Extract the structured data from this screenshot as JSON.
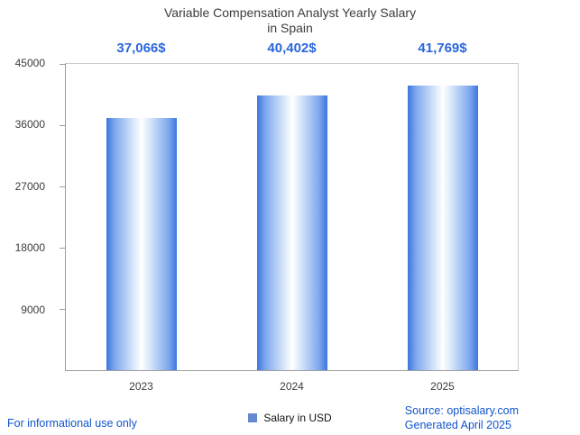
{
  "title": {
    "line1": "Variable Compensation Analyst Yearly Salary",
    "line2": "in Spain"
  },
  "legend": {
    "label": "Salary in USD"
  },
  "footer": {
    "left": "For informational use only",
    "source": "Source: optisalary.com",
    "generated": "Generated April 2025"
  },
  "theme": {
    "accent_blue": "#2a66dd",
    "link_blue": "#1155cc",
    "bar_edge": "#3b76dd",
    "bar_mid": "#ffffff",
    "legend_swatch": "#6688cc",
    "axis_gray": "#9e9e9e",
    "grid_gray": "#cccccc",
    "text_dark": "#3c3c3c"
  },
  "chart_data": {
    "type": "bar",
    "title": "Variable Compensation Analyst Yearly Salary in Spain",
    "xlabel": "",
    "ylabel": "",
    "categories": [
      "2023",
      "2024",
      "2025"
    ],
    "series": [
      {
        "name": "Salary in USD",
        "values": [
          37066,
          40402,
          41769
        ]
      }
    ],
    "values": [
      37066,
      40402,
      41769
    ],
    "value_labels": [
      "37,066$",
      "40,402$",
      "41,769$"
    ],
    "ylim": [
      0,
      45000
    ],
    "y_ticks": [
      9000,
      18000,
      27000,
      36000,
      45000
    ],
    "y_tick_labels": [
      "9000",
      "18000",
      "27000",
      "36000",
      "45000"
    ],
    "grid": false,
    "legend_position": "bottom"
  }
}
